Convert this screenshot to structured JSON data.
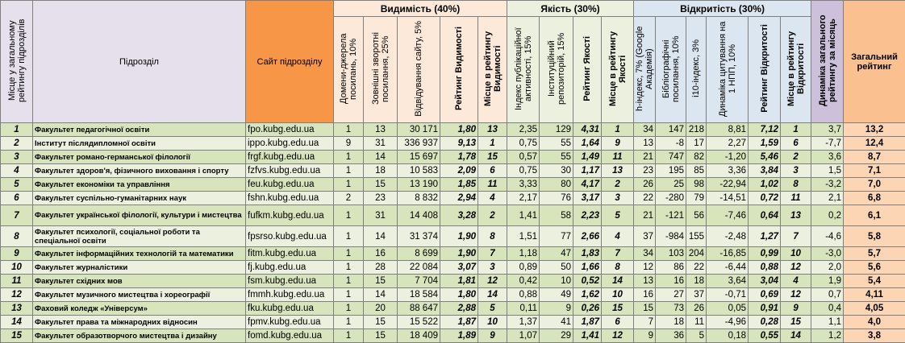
{
  "header": {
    "groups": [
      "Видимість (40%)",
      "Якість (30%)",
      "Відкритість (30%)"
    ],
    "columns": [
      "Місце у загальному рейтингу підрозділів",
      "Підрозділ",
      "Сайт підрозділу",
      "Домени-джерела посилань, 10%",
      "Зовнішні зворотні посилання, 25%",
      "Відвідування сайту, 5%",
      "Рейтинг Видимості",
      "Місце в рейтингу Видимості",
      "Індекс публікаційної активності, 15%",
      "Інституційний репозиторій, 15%",
      "Рейтинг Якості",
      "Місце в рейтингу Якості",
      "h-індекс, 7% (Google Академія)",
      "Бібліографічні посилання, 10%",
      "i10-індекс, 3%",
      "Динаміка цитування на 1 НПП, 10%",
      "Рейтинг Відкритості",
      "Місце в рейтингу Відкритості",
      "Динаміка загального рейтингу за місяць",
      "Загальний рейтинг"
    ]
  },
  "table": {
    "rows": [
      [
        "1",
        "Факультет педагогічної освіти",
        "fpo.kubg.edu.ua",
        "1",
        "13",
        "30 171",
        "1,80",
        "13",
        "2,35",
        "129",
        "4,31",
        "1",
        "34",
        "147",
        "218",
        "8,81",
        "7,12",
        "1",
        "3,7",
        "13,2"
      ],
      [
        "2",
        "Інститут післядипломної освіти",
        "ippo.kubg.edu.ua",
        "9",
        "31",
        "336 937",
        "9,13",
        "1",
        "0,75",
        "55",
        "1,64",
        "9",
        "13",
        "-8",
        "17",
        "2,27",
        "1,59",
        "6",
        "-7,7",
        "12,4"
      ],
      [
        "3",
        "Факультет романо-германської філології",
        "frgf.kubg.edu.ua",
        "1",
        "14",
        "15 697",
        "1,78",
        "15",
        "0,57",
        "55",
        "1,49",
        "11",
        "21",
        "747",
        "82",
        "-1,20",
        "5,46",
        "2",
        "3,6",
        "8,7"
      ],
      [
        "4",
        "Факультет здоров'я, фізичного виховання і спорту",
        "fzfvs.kubg.edu.ua",
        "1",
        "18",
        "10 583",
        "2,09",
        "6",
        "0,75",
        "30",
        "1,17",
        "13",
        "23",
        "195",
        "85",
        "3,36",
        "3,84",
        "3",
        "1,5",
        "7,1"
      ],
      [
        "5",
        "Факультет економіки та управління",
        "feu.kubg.edu.ua",
        "1",
        "15",
        "13 190",
        "1,85",
        "11",
        "3,33",
        "80",
        "4,17",
        "2",
        "26",
        "25",
        "98",
        "-22,94",
        "1,02",
        "8",
        "-3,2",
        "7,0"
      ],
      [
        "6",
        "Факультет суспільно-гуманітарних наук",
        "fshn.kubg.edu.ua",
        "2",
        "23",
        "8 832",
        "2,94",
        "4",
        "2,17",
        "76",
        "3,17",
        "3",
        "22",
        "-280",
        "79",
        "-14,51",
        "0,72",
        "11",
        "2,1",
        "6,8"
      ],
      [
        "7",
        "Факультет української філології, культури і мистецтва",
        "fufkm.kubg.edu.ua",
        "1",
        "31",
        "14 408",
        "3,28",
        "2",
        "1,41",
        "58",
        "2,23",
        "5",
        "21",
        "-121",
        "56",
        "-7,46",
        "0,64",
        "13",
        "0,2",
        "6,1"
      ],
      [
        "8",
        "Факультет психології, соціальної роботи та спеціальної освіти",
        "fpsrso.kubg.edu.ua",
        "1",
        "14",
        "31 374",
        "1,90",
        "8",
        "1,51",
        "77",
        "2,66",
        "4",
        "37",
        "-984",
        "155",
        "-2,48",
        "1,27",
        "7",
        "-4,6",
        "5,8"
      ],
      [
        "9",
        "Факультет інформаційних технологій та математики",
        "fitm.kubg.edu.ua",
        "1",
        "16",
        "8 699",
        "1,90",
        "7",
        "1,18",
        "47",
        "1,83",
        "7",
        "34",
        "103",
        "204",
        "-16,85",
        "0,99",
        "10",
        "-3,0",
        "5,7"
      ],
      [
        "10",
        "Факультет журналістики",
        "fj.kubg.edu.ua",
        "1",
        "28",
        "22 084",
        "3,07",
        "3",
        "0,89",
        "50",
        "1,66",
        "8",
        "12",
        "86",
        "22",
        "-6,44",
        "0,88",
        "12",
        "2,0",
        "5,6"
      ],
      [
        "11",
        "Факультет східних мов",
        "fsm.kubg.edu.ua",
        "1",
        "15",
        "7 704",
        "1,81",
        "12",
        "0,42",
        "10",
        "0,52",
        "14",
        "13",
        "16",
        "18",
        "3,64",
        "3,04",
        "4",
        "1,9",
        "5,4"
      ],
      [
        "12",
        "Факультет музичного мистецтва і хореографії",
        "fmmh.kubg.edu.ua",
        "1",
        "14",
        "18 584",
        "1,80",
        "14",
        "0,88",
        "49",
        "1,62",
        "10",
        "16",
        "27",
        "37",
        "-0,71",
        "0,69",
        "12",
        "0,7",
        "4,11"
      ],
      [
        "13",
        "Фаховий коледж «Універсум»",
        "fku.kubg.edu.ua",
        "1",
        "20",
        "88 647",
        "2,88",
        "5",
        "0,11",
        "9",
        "0,26",
        "15",
        "15",
        "73",
        "26",
        "0,05",
        "0,91",
        "9",
        "0,4",
        "4,05"
      ],
      [
        "14",
        "Факультет права та міжнародних відносин",
        "fpmv.kubg.edu.ua",
        "1",
        "15",
        "15 522",
        "1,87",
        "10",
        "1,37",
        "41",
        "1,87",
        "6",
        "7",
        "18",
        "11",
        "-4,96",
        "0,28",
        "15",
        "1,1",
        "4,0"
      ],
      [
        "15",
        "Факультет образотворчого мистецтва і дизайну",
        "fomd.kubg.edu.ua",
        "1",
        "15",
        "18 409",
        "1,89",
        "9",
        "1,07",
        "29",
        "1,41",
        "12",
        "9",
        "36",
        "5",
        "0,18",
        "0,55",
        "14",
        "1,2",
        "3,8"
      ]
    ]
  }
}
